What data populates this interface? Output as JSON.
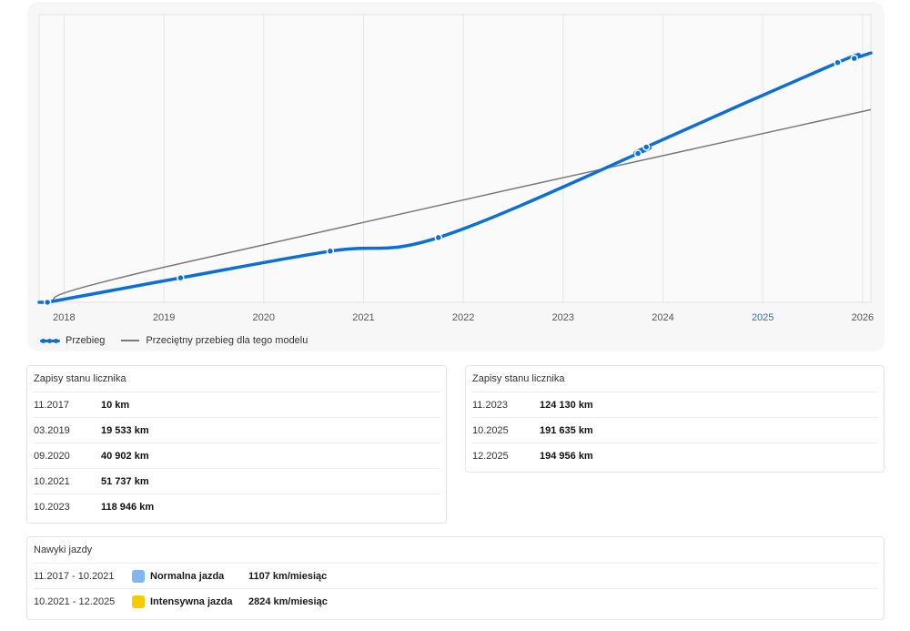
{
  "chart_data": {
    "type": "line",
    "x_ticks": [
      "2018",
      "2019",
      "2020",
      "2021",
      "2022",
      "2023",
      "2024",
      "2025",
      "2026"
    ],
    "highlighted_tick": "2025",
    "xlim": [
      "2017-10",
      "2026-02"
    ],
    "ylim": [
      0,
      230000
    ],
    "grid": "vertical",
    "legend_position": "bottom-left",
    "series": [
      {
        "name": "Przebieg",
        "color": "#0b6fd8",
        "points": [
          {
            "x": "2017-11",
            "y": 10
          },
          {
            "x": "2019-03",
            "y": 19533
          },
          {
            "x": "2020-09",
            "y": 40902
          },
          {
            "x": "2021-10",
            "y": 51737
          },
          {
            "x": "2023-10",
            "y": 118946
          },
          {
            "x": "2023-11",
            "y": 124130
          },
          {
            "x": "2025-10",
            "y": 191635
          },
          {
            "x": "2025-12",
            "y": 194956
          }
        ]
      },
      {
        "name": "Przeciętny przebieg dla tego modelu",
        "color": "#7a7a7a",
        "points": [
          {
            "x": "2017-11",
            "y": 0
          },
          {
            "x": "2019-01",
            "y": 28000
          },
          {
            "x": "2026-02",
            "y": 154000
          }
        ]
      }
    ]
  },
  "records_left": {
    "title": "Zapisy stanu licznika",
    "rows": [
      {
        "date": "11.2017",
        "km": "10 km"
      },
      {
        "date": "03.2019",
        "km": "19 533 km"
      },
      {
        "date": "09.2020",
        "km": "40 902 km"
      },
      {
        "date": "10.2021",
        "km": "51 737 km"
      },
      {
        "date": "10.2023",
        "km": "118 946 km"
      }
    ]
  },
  "records_right": {
    "title": "Zapisy stanu licznika",
    "rows": [
      {
        "date": "11.2023",
        "km": "124 130 km"
      },
      {
        "date": "10.2025",
        "km": "191 635 km"
      },
      {
        "date": "12.2025",
        "km": "194 956 km"
      }
    ]
  },
  "habits": {
    "title": "Nawyki jazdy",
    "rows": [
      {
        "period": "11.2017 - 10.2021",
        "mode": "Normalna jazda",
        "rate": "1107 km/miesiąc",
        "color": "#7fb8ef"
      },
      {
        "period": "10.2021 - 12.2025",
        "mode": "Intensywna jazda",
        "rate": "2824 km/miesiąc",
        "color": "#f5cc00"
      }
    ]
  }
}
